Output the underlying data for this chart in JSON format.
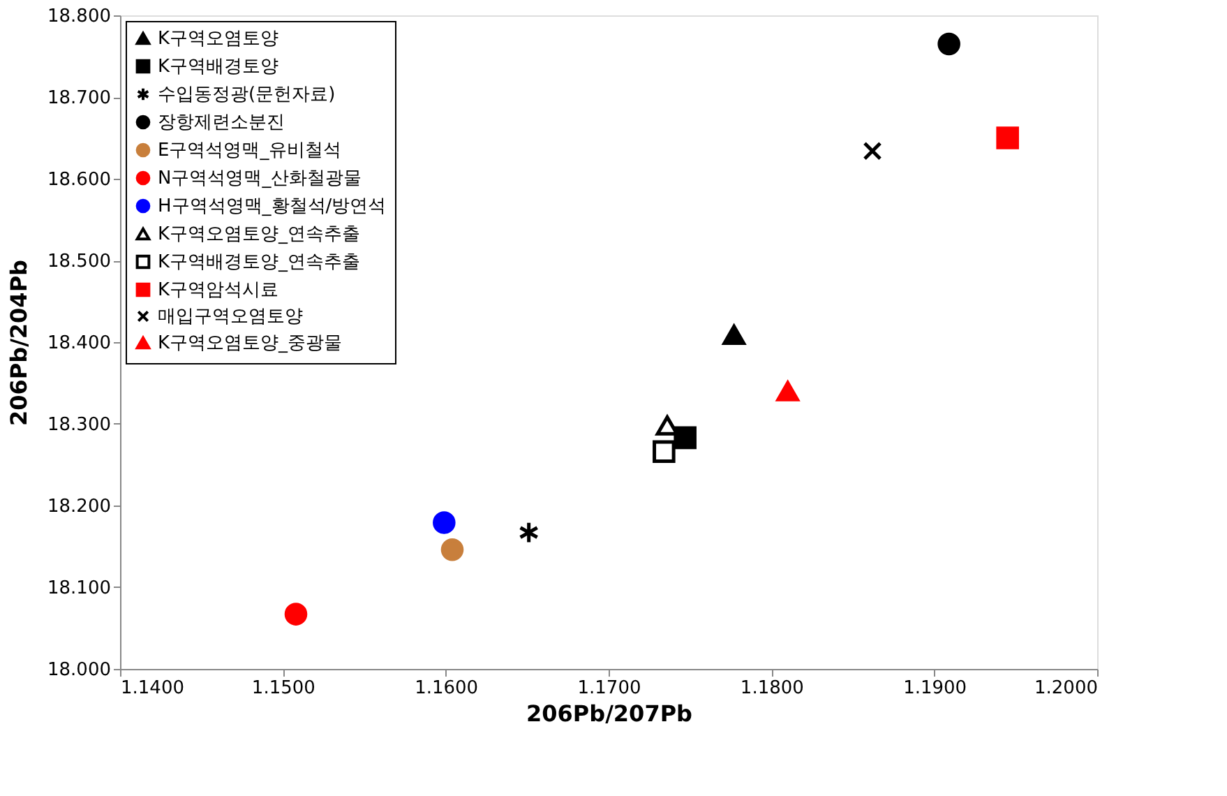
{
  "chart_data": {
    "type": "scatter",
    "xlabel": "206Pb/207Pb",
    "ylabel": "206Pb/204Pb",
    "xlim": [
      1.14,
      1.2
    ],
    "ylim": [
      18.0,
      18.8
    ],
    "xticks": [
      {
        "value": 1.14,
        "label": "1.1400"
      },
      {
        "value": 1.15,
        "label": "1.1500"
      },
      {
        "value": 1.16,
        "label": "1.1600"
      },
      {
        "value": 1.17,
        "label": "1.1700"
      },
      {
        "value": 1.18,
        "label": "1.1800"
      },
      {
        "value": 1.19,
        "label": "1.1900"
      },
      {
        "value": 1.2,
        "label": "1.2000"
      }
    ],
    "yticks": [
      {
        "value": 18.0,
        "label": "18.000"
      },
      {
        "value": 18.1,
        "label": "18.100"
      },
      {
        "value": 18.2,
        "label": "18.200"
      },
      {
        "value": 18.3,
        "label": "18.300"
      },
      {
        "value": 18.4,
        "label": "18.400"
      },
      {
        "value": 18.5,
        "label": "18.500"
      },
      {
        "value": 18.6,
        "label": "18.600"
      },
      {
        "value": 18.7,
        "label": "18.700"
      },
      {
        "value": 18.8,
        "label": "18.800"
      }
    ],
    "grid": false,
    "legend": "top left",
    "series": [
      {
        "name": "K구역오염토양",
        "color": "#000000",
        "marker": "triangle",
        "x": [
          1.1777
        ],
        "values": [
          18.409
        ]
      },
      {
        "name": "K구역배경토양",
        "color": "#000000",
        "marker": "square",
        "x": [
          1.1747
        ],
        "values": [
          18.283
        ]
      },
      {
        "name": "수입동정광(문헌자료)",
        "color": "#000000",
        "x": [
          1.1651
        ],
        "values": [
          18.167
        ]
      },
      {
        "name": "장항제련소분진",
        "color": "#000000",
        "marker": "circle",
        "x": [
          1.1909
        ],
        "values": [
          18.765
        ]
      },
      {
        "name": "E구역석영맥_유비철석",
        "color": "#c87f3c",
        "marker": "circle",
        "x": [
          1.1604
        ],
        "values": [
          18.146
        ]
      },
      {
        "name": "N구역석영맥_산화철광물",
        "color": "#ff0000",
        "marker": "circle",
        "x": [
          1.1508
        ],
        "values": [
          18.067
        ]
      },
      {
        "name": "H구역석영맥_황철석/방연석",
        "color": "#0000ff",
        "marker": "circle",
        "x": [
          1.1599
        ],
        "values": [
          18.179
        ]
      },
      {
        "name": "K구역오염토양_연속추출",
        "color": "#000000",
        "marker": "triangle",
        "x": [
          1.1736
        ],
        "values": [
          18.298
        ]
      },
      {
        "name": "K구역배경토양_연속추출",
        "color": "#000000",
        "marker": "square",
        "x": [
          1.1734
        ],
        "values": [
          18.266
        ]
      },
      {
        "name": "K구역암석시료",
        "color": "#ff0000",
        "marker": "square",
        "x": [
          1.1945
        ],
        "values": [
          18.65
        ]
      },
      {
        "name": "매입구역오염토양",
        "color": "#000000",
        "marker": "cross",
        "x": [
          1.1862
        ],
        "values": [
          18.634
        ]
      },
      {
        "name": "K구역오염토양_중광물",
        "color": "#ff0000",
        "marker": "triangle",
        "x": [
          1.181
        ],
        "values": [
          18.34
        ]
      }
    ]
  }
}
